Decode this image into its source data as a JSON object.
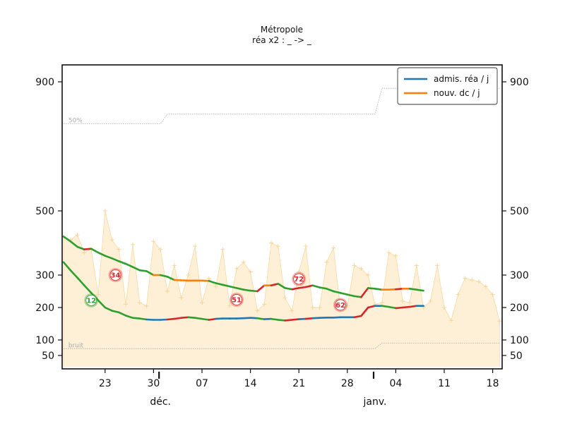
{
  "chart_data": {
    "type": "line",
    "title": "Métropole",
    "subtitle": "réa x2 : _ -> _",
    "x_tick_labels": [
      "23",
      "30",
      "07",
      "14",
      "21",
      "28",
      "04",
      "11",
      "18"
    ],
    "x_tick_days": [
      6,
      13,
      20,
      27,
      34,
      41,
      48,
      55,
      62
    ],
    "month_labels": [
      {
        "label": "déc.",
        "day": 14
      },
      {
        "label": "janv.",
        "day": 45
      }
    ],
    "y_ticks": [
      50,
      100,
      200,
      300,
      500,
      900
    ],
    "ylim": [
      0,
      950
    ],
    "xlim": [
      0,
      63
    ],
    "legend": [
      {
        "label": "admis. réa / j",
        "color": "#1f77b4"
      },
      {
        "label": "nouv. dc / j",
        "color": "#ff7f0e"
      }
    ],
    "annotations": {
      "pct50": "50%",
      "noise": "bruit"
    },
    "colors": {
      "up": "#d62728",
      "down": "#2ca02c",
      "adm": "#1f77b4",
      "dc": "#ff7f0e",
      "fill": "#fde9c9",
      "raw": "#f5d69a"
    },
    "reference_50pct": [
      {
        "x": 0,
        "y": 770
      },
      {
        "x": 14,
        "y": 770
      },
      {
        "x": 15,
        "y": 800
      },
      {
        "x": 45,
        "y": 800
      },
      {
        "x": 46,
        "y": 880
      },
      {
        "x": 63,
        "y": 880
      }
    ],
    "reference_noise": [
      {
        "x": 0,
        "y": 72
      },
      {
        "x": 45,
        "y": 72
      },
      {
        "x": 46,
        "y": 90
      },
      {
        "x": 63,
        "y": 90
      }
    ],
    "raw_dc": [
      420,
      410,
      425,
      370,
      380,
      240,
      500,
      410,
      380,
      210,
      395,
      215,
      205,
      405,
      380,
      250,
      330,
      230,
      300,
      390,
      215,
      290,
      265,
      380,
      205,
      320,
      340,
      310,
      190,
      210,
      400,
      390,
      230,
      190,
      310,
      390,
      200,
      200,
      340,
      385,
      195,
      205,
      330,
      320,
      300,
      210,
      215,
      370,
      360,
      220,
      215,
      330,
      200,
      220,
      330,
      200,
      160,
      240,
      290,
      285,
      280,
      265,
      240,
      158
    ],
    "dc_smoothed": [
      420,
      405,
      388,
      380,
      382,
      370,
      360,
      352,
      343,
      335,
      325,
      315,
      312,
      300,
      300,
      295,
      285,
      284,
      283,
      283,
      283,
      282,
      275,
      270,
      265,
      260,
      255,
      252,
      250,
      268,
      268,
      273,
      260,
      256,
      260,
      263,
      268,
      262,
      258,
      250,
      245,
      240,
      235,
      232,
      260,
      258,
      255,
      255,
      256,
      258,
      258,
      255,
      252
    ],
    "adm_smoothed": [
      340,
      315,
      292,
      268,
      245,
      222,
      200,
      190,
      185,
      175,
      168,
      166,
      163,
      162,
      162,
      163,
      165,
      168,
      170,
      168,
      165,
      162,
      165,
      166,
      166,
      166,
      167,
      168,
      167,
      164,
      165,
      162,
      160,
      162,
      164,
      165,
      167,
      168,
      169,
      169,
      170,
      170,
      170,
      174,
      200,
      205,
      205,
      202,
      198,
      200,
      202,
      205,
      205
    ],
    "badges": [
      {
        "label": "34",
        "day": 7.5,
        "value": 300,
        "kind": "up"
      },
      {
        "label": "12",
        "day": 4,
        "value": 222,
        "kind": "down"
      },
      {
        "label": "51",
        "day": 25,
        "value": 224,
        "kind": "up"
      },
      {
        "label": "72",
        "day": 34,
        "value": 288,
        "kind": "up"
      },
      {
        "label": "62",
        "day": 40,
        "value": 208,
        "kind": "up"
      }
    ]
  }
}
